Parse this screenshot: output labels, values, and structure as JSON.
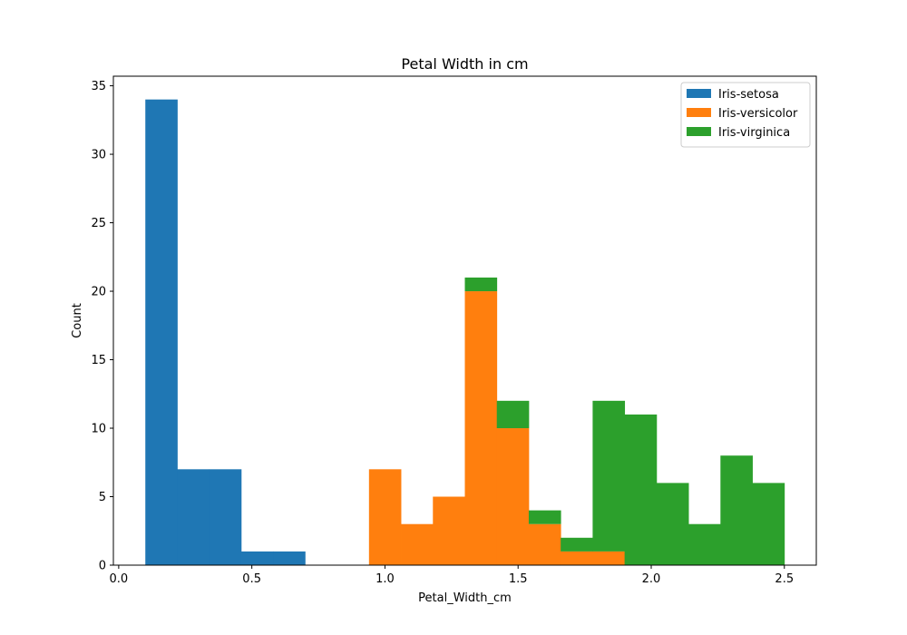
{
  "chart_data": {
    "type": "bar",
    "title": "Petal Width in cm",
    "xlabel": "Petal_Width_cm",
    "ylabel": "Count",
    "xlim": [
      -0.02,
      2.62
    ],
    "ylim": [
      0,
      35.7
    ],
    "xticks": [
      0.0,
      0.5,
      1.0,
      1.5,
      2.0,
      2.5
    ],
    "xtick_labels": [
      "0.0",
      "0.5",
      "1.0",
      "1.5",
      "2.0",
      "2.5"
    ],
    "yticks": [
      0,
      5,
      10,
      15,
      20,
      25,
      30,
      35
    ],
    "ytick_labels": [
      "0",
      "5",
      "10",
      "15",
      "20",
      "25",
      "30",
      "35"
    ],
    "grid": false,
    "legend_position": "top-right",
    "stacked": true,
    "series": [
      {
        "name": "Iris-setosa",
        "color": "#1f77b4",
        "bins": [
          {
            "x0": 0.1,
            "x1": 0.22,
            "value": 34
          },
          {
            "x0": 0.22,
            "x1": 0.34,
            "value": 7
          },
          {
            "x0": 0.34,
            "x1": 0.46,
            "value": 7
          },
          {
            "x0": 0.46,
            "x1": 0.58,
            "value": 1
          },
          {
            "x0": 0.58,
            "x1": 0.7,
            "value": 1
          }
        ]
      },
      {
        "name": "Iris-versicolor",
        "color": "#ff7f0e",
        "bins": [
          {
            "x0": 0.94,
            "x1": 1.06,
            "value": 7
          },
          {
            "x0": 1.06,
            "x1": 1.18,
            "value": 3
          },
          {
            "x0": 1.18,
            "x1": 1.3,
            "value": 5
          },
          {
            "x0": 1.3,
            "x1": 1.42,
            "value": 20
          },
          {
            "x0": 1.42,
            "x1": 1.54,
            "value": 10
          },
          {
            "x0": 1.54,
            "x1": 1.66,
            "value": 3
          },
          {
            "x0": 1.66,
            "x1": 1.78,
            "value": 1
          },
          {
            "x0": 1.78,
            "x1": 1.9,
            "value": 1
          }
        ]
      },
      {
        "name": "Iris-virginica",
        "color": "#2ca02c",
        "bins": [
          {
            "x0": 1.3,
            "x1": 1.42,
            "value": 1
          },
          {
            "x0": 1.42,
            "x1": 1.54,
            "value": 2
          },
          {
            "x0": 1.54,
            "x1": 1.66,
            "value": 1
          },
          {
            "x0": 1.66,
            "x1": 1.78,
            "value": 1
          },
          {
            "x0": 1.78,
            "x1": 1.9,
            "value": 11
          },
          {
            "x0": 1.9,
            "x1": 2.02,
            "value": 11
          },
          {
            "x0": 2.02,
            "x1": 2.14,
            "value": 6
          },
          {
            "x0": 2.14,
            "x1": 2.26,
            "value": 3
          },
          {
            "x0": 2.26,
            "x1": 2.38,
            "value": 8
          },
          {
            "x0": 2.38,
            "x1": 2.5,
            "value": 6
          }
        ]
      }
    ]
  }
}
